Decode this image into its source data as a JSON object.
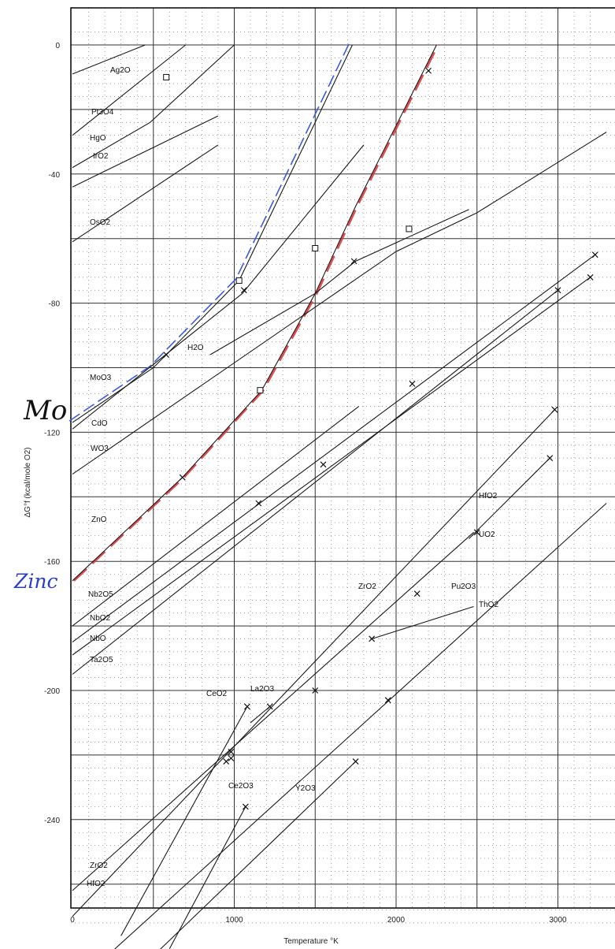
{
  "chart_data": {
    "type": "line",
    "title": "",
    "xlabel": "Temperature °K",
    "ylabel": "ΔG°f (kcal/mole O2)",
    "xlim": [
      0,
      3300
    ],
    "ylim": [
      -274,
      4
    ],
    "x_ticks": [
      "0",
      "1000",
      "2000",
      "3000"
    ],
    "y_ticks": [
      "0",
      "-40",
      "-80",
      "-120",
      "-160",
      "-200",
      "-240"
    ],
    "grid": "on",
    "annotations": {
      "mo": "Mo",
      "zinc": "Zinc"
    },
    "series": [
      {
        "name": "Ag2O",
        "points": [
          [
            0,
            -9
          ],
          [
            450,
            0
          ]
        ],
        "markers": []
      },
      {
        "name": "Pt3O4",
        "points": [
          [
            0,
            -28
          ],
          [
            700,
            0
          ]
        ],
        "markers": [
          [
            580,
            -10
          ]
        ]
      },
      {
        "name": "HgO",
        "points": [
          [
            0,
            -38
          ],
          [
            480,
            -24
          ],
          [
            1000,
            0
          ]
        ],
        "markers": []
      },
      {
        "name": "IrO2",
        "points": [
          [
            0,
            -44
          ],
          [
            900,
            -22
          ]
        ],
        "markers": []
      },
      {
        "name": "OsO2",
        "points": [
          [
            0,
            -61
          ],
          [
            900,
            -31
          ]
        ],
        "markers": []
      },
      {
        "name": "MoO3",
        "points": [
          [
            0,
            -117
          ],
          [
            500,
            -100
          ],
          [
            1030,
            -73
          ],
          [
            1730,
            0
          ]
        ],
        "markers": [
          [
            1030,
            -73
          ],
          [
            580,
            -96
          ]
        ]
      },
      {
        "name": "CdO",
        "points": [
          [
            0,
            -119
          ],
          [
            1050,
            -77
          ],
          [
            1800,
            -31
          ]
        ],
        "markers": [
          [
            1060,
            -76
          ]
        ]
      },
      {
        "name": "WO3",
        "points": [
          [
            0,
            -133
          ],
          [
            2000,
            -64
          ],
          [
            2500,
            -52
          ],
          [
            3300,
            -27
          ]
        ],
        "markers": [
          [
            1500,
            -63
          ],
          [
            2080,
            -57
          ]
        ]
      },
      {
        "name": "H2O",
        "points": [
          [
            850,
            -96
          ],
          [
            1500,
            -77
          ],
          [
            1750,
            -67
          ],
          [
            2450,
            -51
          ]
        ],
        "markers": [
          [
            1740,
            -67
          ]
        ]
      },
      {
        "name": "ZnO",
        "points": [
          [
            0,
            -166
          ],
          [
            680,
            -134
          ],
          [
            1170,
            -107
          ],
          [
            1500,
            -77
          ],
          [
            1750,
            -50
          ],
          [
            2250,
            0
          ]
        ],
        "markers": [
          [
            1160,
            -107
          ],
          [
            680,
            -134
          ],
          [
            2200,
            -8
          ]
        ]
      },
      {
        "name": "Nb2O5",
        "points": [
          [
            0,
            -180
          ],
          [
            1770,
            -112
          ]
        ],
        "markers": []
      },
      {
        "name": "NbO2",
        "points": [
          [
            0,
            -185
          ],
          [
            3230,
            -65
          ]
        ],
        "markers": [
          [
            3230,
            -65
          ],
          [
            2100,
            -105
          ]
        ]
      },
      {
        "name": "NbO",
        "points": [
          [
            0,
            -189
          ],
          [
            3200,
            -72
          ]
        ],
        "markers": [
          [
            3200,
            -72
          ],
          [
            1550,
            -130
          ]
        ]
      },
      {
        "name": "Ta2O5",
        "points": [
          [
            0,
            -195
          ],
          [
            3000,
            -76
          ]
        ],
        "markers": [
          [
            3000,
            -76
          ],
          [
            1150,
            -142
          ]
        ]
      },
      {
        "name": "HfO2",
        "points": [
          [
            0,
            -270
          ],
          [
            2980,
            -113
          ]
        ],
        "markers": [
          [
            2980,
            -113
          ],
          [
            2500,
            -151
          ],
          [
            1500,
            -200
          ]
        ]
      },
      {
        "name": "UO2",
        "points": [
          [
            2450,
            -153
          ],
          [
            2950,
            -128
          ]
        ],
        "markers": [
          [
            2950,
            -128
          ]
        ]
      },
      {
        "name": "ZrO2",
        "points": [
          [
            0,
            -262
          ],
          [
            2480,
            -151
          ]
        ],
        "markers": [
          [
            2130,
            -170
          ],
          [
            980,
            -219
          ]
        ]
      },
      {
        "name": "Pu2O3",
        "points": [
          [
            1850,
            -184
          ],
          [
            2480,
            -174
          ]
        ],
        "markers": [
          [
            1850,
            -184
          ]
        ]
      },
      {
        "name": "ThO2",
        "points": [
          [
            0,
            -292
          ],
          [
            3300,
            -142
          ]
        ],
        "markers": [
          [
            1950,
            -203
          ],
          [
            980,
            -221
          ]
        ]
      },
      {
        "name": "CeO2",
        "points": [
          [
            300,
            -276
          ],
          [
            1080,
            -205
          ]
        ],
        "markers": [
          [
            1080,
            -205
          ],
          [
            950,
            -222
          ]
        ]
      },
      {
        "name": "La2O3",
        "points": [
          [
            1100,
            -210
          ],
          [
            1220,
            -205
          ]
        ],
        "markers": [
          [
            1220,
            -205
          ]
        ]
      },
      {
        "name": "Ce2O3",
        "points": [
          [
            600,
            -280
          ],
          [
            1070,
            -236
          ]
        ],
        "markers": [
          [
            1070,
            -236
          ]
        ]
      },
      {
        "name": "Y2O3",
        "points": [
          [
            380,
            -288
          ],
          [
            1750,
            -222
          ]
        ],
        "markers": [
          [
            1750,
            -222
          ]
        ]
      }
    ]
  }
}
